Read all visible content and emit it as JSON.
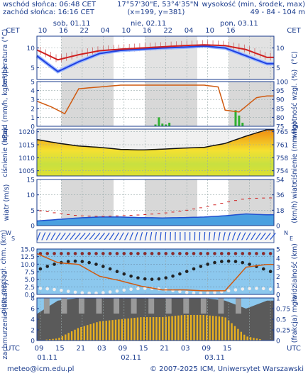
{
  "header": {
    "sunrise": "wschód słońca: 06:48 CET",
    "sunset": "zachód słońca: 16:16 CET",
    "coords": "17°57'30\"E, 53°4'35\"N",
    "grid": "(x=199, y=381)",
    "elevation_label": "wysokość (min, środek, max)",
    "elevation_values": "49 - 84 - 104 m"
  },
  "time_axis": {
    "tz_left": "CET",
    "tz_right": "CET",
    "tz_bottom_left": "UTC",
    "tz_bottom_right": "UTC",
    "days": [
      "sob, 01.11",
      "nie, 02.11",
      "pon, 03.11"
    ],
    "top_hours": [
      "10",
      "16",
      "22",
      "04",
      "10",
      "16",
      "22",
      "04",
      "10",
      "16"
    ],
    "bottom_hours": [
      "09",
      "15",
      "21",
      "03",
      "09",
      "15",
      "21",
      "03",
      "09",
      "15"
    ],
    "bottom_dates": [
      "01.11",
      "02.11",
      "03.11"
    ]
  },
  "footer": {
    "email": "meteo@icm.edu.pl",
    "copyright": "© 2007-2025 ICM, Uniwersytet Warszawski"
  },
  "colors": {
    "frame_blue": "#1a3b8c",
    "temp_red": "#d02020",
    "temp_blue": "#2040e0",
    "humidity_orange": "#d05a10",
    "precip_green": "#30b030",
    "wind_blue": "#2050d0",
    "cloud_yellow": "#e8b020",
    "sky_blue": "#8cc8ee"
  },
  "chart_data": [
    {
      "type": "line",
      "panel": "temperature",
      "ylabel_left": "temperatura (°C)",
      "ylabel_right": "(°C)",
      "ylim": [
        2,
        13
      ],
      "yticks": [
        5,
        10
      ],
      "x_hours": [
        0,
        6,
        12,
        18,
        24,
        30,
        36,
        42,
        48,
        54,
        60,
        66
      ],
      "series": [
        {
          "values": [
            9.5,
            7.0,
            8.3,
            9.3,
            9.7,
            10.0,
            10.3,
            10.6,
            10.8,
            10.6,
            9.6,
            7.6
          ]
        },
        {
          "values": [
            8.0,
            4.0,
            6.5,
            8.6,
            9.4,
            9.7,
            10.0,
            10.2,
            10.5,
            10.0,
            8.0,
            6.0
          ]
        }
      ]
    },
    {
      "type": "bar",
      "panel": "precipitation",
      "ylabel_left": "opad (mm/h, kg/m²/h)",
      "ylabel_right": "wilgotność wzgl. (%)",
      "ylim_left": [
        0,
        5
      ],
      "ylim_right": [
        75,
        100
      ],
      "yticks_left": [
        0,
        1,
        2,
        3,
        4,
        5
      ],
      "yticks_right": [
        75,
        80,
        85,
        90,
        95,
        100
      ],
      "x_hours": [
        0,
        4,
        8,
        12,
        18,
        24,
        30,
        36,
        42,
        48,
        52,
        54,
        58,
        63,
        66
      ],
      "humidity": [
        89,
        86,
        82,
        96,
        97,
        98,
        98,
        98,
        98,
        98,
        97,
        84,
        83,
        91,
        92
      ],
      "precip_hours": [
        34,
        35,
        36,
        37,
        38,
        57,
        58,
        59
      ],
      "precip_values": [
        0.2,
        1.0,
        0.3,
        0.2,
        0.4,
        1.8,
        1.2,
        0.4
      ]
    },
    {
      "type": "area",
      "panel": "pressure",
      "ylabel_left": "ciśnienie (hPa)",
      "ylabel_right": "ciśnienie (mm Hg)",
      "ylim_left": [
        1003,
        1021
      ],
      "yticks_left": [
        1005,
        1010,
        1015,
        1020
      ],
      "yticks_right": [
        "754",
        "758",
        "761",
        "765"
      ],
      "x_hours": [
        0,
        6,
        12,
        18,
        24,
        30,
        36,
        42,
        48,
        54,
        60,
        66
      ],
      "values": [
        1017.0,
        1015.6,
        1014.5,
        1014.0,
        1013.2,
        1013.0,
        1013.3,
        1013.7,
        1014.0,
        1015.5,
        1018.3,
        1020.8
      ]
    },
    {
      "type": "line",
      "panel": "wind",
      "ylabel_left": "wiatr (m/s)",
      "ylabel_right": "(km/h) wiatr",
      "ylim_left": [
        0,
        15
      ],
      "yticks_left": [
        0,
        5,
        10,
        15
      ],
      "yticks_right": [
        "0",
        "18",
        "36",
        "54"
      ],
      "x_hours": [
        0,
        6,
        12,
        18,
        24,
        30,
        36,
        42,
        48,
        54,
        60,
        66
      ],
      "speed": [
        1.5,
        2.0,
        2.5,
        2.8,
        2.8,
        2.6,
        2.5,
        2.6,
        2.8,
        3.2,
        3.8,
        3.5
      ],
      "gust": [
        5.0,
        4.0,
        3.2,
        3.0,
        3.2,
        3.5,
        4.0,
        4.8,
        6.0,
        7.5,
        8.8,
        9.0
      ]
    },
    {
      "type": "scatter",
      "panel": "visibility",
      "ylabel_left": "pion. rozciągł. chm. (km)",
      "ylabel_right": "widzialność (km)",
      "ylim_left": [
        0,
        15
      ],
      "yticks_left": [
        0.0,
        2.5,
        5.0,
        7.5,
        10.0,
        12.5,
        15.0
      ],
      "yticks_right": [
        0,
        1,
        2,
        3,
        4,
        5
      ],
      "x_hours": [
        0,
        6,
        12,
        18,
        24,
        30,
        36,
        42,
        48,
        54,
        60,
        66
      ],
      "visibility": [
        4.5,
        3.5,
        3.3,
        2.0,
        1.5,
        0.9,
        0.5,
        0.5,
        0.4,
        0.4,
        3.0,
        3.3
      ]
    },
    {
      "type": "area",
      "panel": "clouds",
      "ylabel_left": "zachmurzenie (oktanty)",
      "ylabel_right": "(frakcja) mgła",
      "ylim_left": [
        0,
        8
      ],
      "yticks_left": [
        0,
        2,
        4,
        6,
        8
      ],
      "yticks_right": [
        "0",
        "0.25",
        "0.5",
        "0.75",
        "1"
      ],
      "x_hours": [
        0,
        6,
        12,
        18,
        24,
        30,
        36,
        42,
        48,
        54,
        60,
        66
      ],
      "total": [
        5.0,
        7.5,
        8.0,
        8.0,
        8.0,
        8.0,
        8.0,
        8.0,
        8.0,
        7.5,
        6.0,
        7.5
      ],
      "fog": [
        0.0,
        0.05,
        0.3,
        0.45,
        0.5,
        0.55,
        0.55,
        0.6,
        0.6,
        0.55,
        0.1,
        0.0
      ]
    }
  ]
}
